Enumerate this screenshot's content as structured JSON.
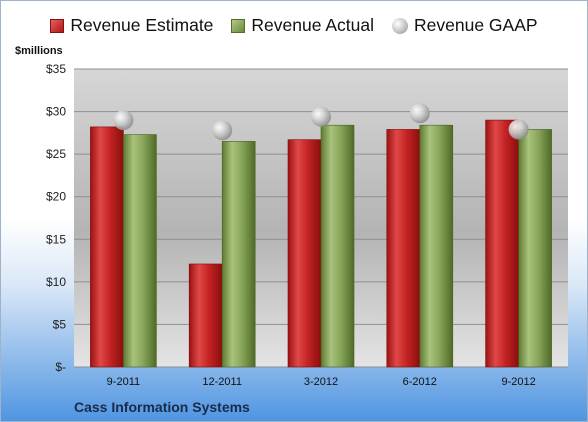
{
  "legend": {
    "estimate": "Revenue Estimate",
    "actual": "Revenue Actual",
    "gaap": "Revenue GAAP"
  },
  "unit_label": "$millions",
  "company": "Cass Information Systems",
  "colors": {
    "estimate": "#c42323",
    "actual": "#87a55a",
    "gaap": "#b8b8b8",
    "plot_bg": "#c8c8c8"
  },
  "chart_data": {
    "type": "bar",
    "categories": [
      "9-2011",
      "12-2011",
      "3-2012",
      "6-2012",
      "9-2012"
    ],
    "series": [
      {
        "name": "Revenue Estimate",
        "values": [
          28.2,
          12.1,
          26.7,
          27.9,
          29.0
        ]
      },
      {
        "name": "Revenue Actual",
        "values": [
          27.3,
          26.5,
          28.4,
          28.4,
          27.9
        ]
      },
      {
        "name": "Revenue GAAP",
        "style": "marker",
        "values": [
          29.0,
          27.8,
          29.4,
          29.8,
          27.9
        ]
      }
    ],
    "ylabel": "$millions",
    "ylim": [
      0,
      35
    ],
    "yticks": [
      0,
      5,
      10,
      15,
      20,
      25,
      30,
      35
    ],
    "ytick_labels": [
      "$-",
      "$5",
      "$10",
      "$15",
      "$20",
      "$25",
      "$30",
      "$35"
    ],
    "grid": true,
    "legend_position": "top"
  }
}
